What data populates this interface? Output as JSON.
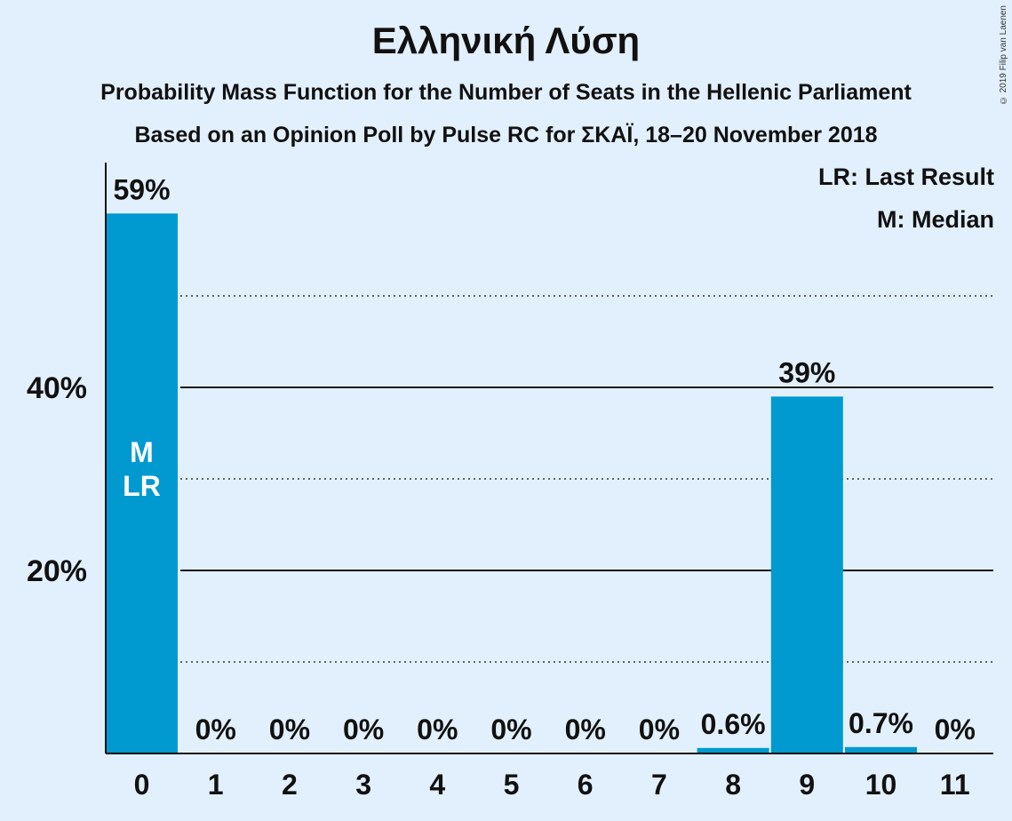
{
  "chart_data": {
    "type": "bar",
    "title": "Ελληνική Λύση",
    "subtitle": "Probability Mass Function for the Number of Seats in the Hellenic Parliament",
    "subtitle2": "Based on an Opinion Poll by Pulse RC for ΣΚΑΪ, 18–20 November 2018",
    "copyright": "© 2019 Filip van Laenen",
    "legend": [
      "LR: Last Result",
      "M: Median"
    ],
    "categories": [
      "0",
      "1",
      "2",
      "3",
      "4",
      "5",
      "6",
      "7",
      "8",
      "9",
      "10",
      "11"
    ],
    "values": [
      59,
      0,
      0,
      0,
      0,
      0,
      0,
      0,
      0.6,
      39,
      0.7,
      0
    ],
    "data_labels": [
      "59%",
      "0%",
      "0%",
      "0%",
      "0%",
      "0%",
      "0%",
      "0%",
      "0.6%",
      "39%",
      "0.7%",
      "0%"
    ],
    "ytick_labels": [
      "20%",
      "40%"
    ],
    "yticks": [
      20,
      40
    ],
    "minor_gridlines": [
      10,
      30,
      50
    ],
    "ylim": [
      0,
      64
    ],
    "bar_color": "#0099d0",
    "bar_annotations": [
      {
        "category": "0",
        "lines": [
          "M",
          "LR"
        ]
      }
    ]
  }
}
